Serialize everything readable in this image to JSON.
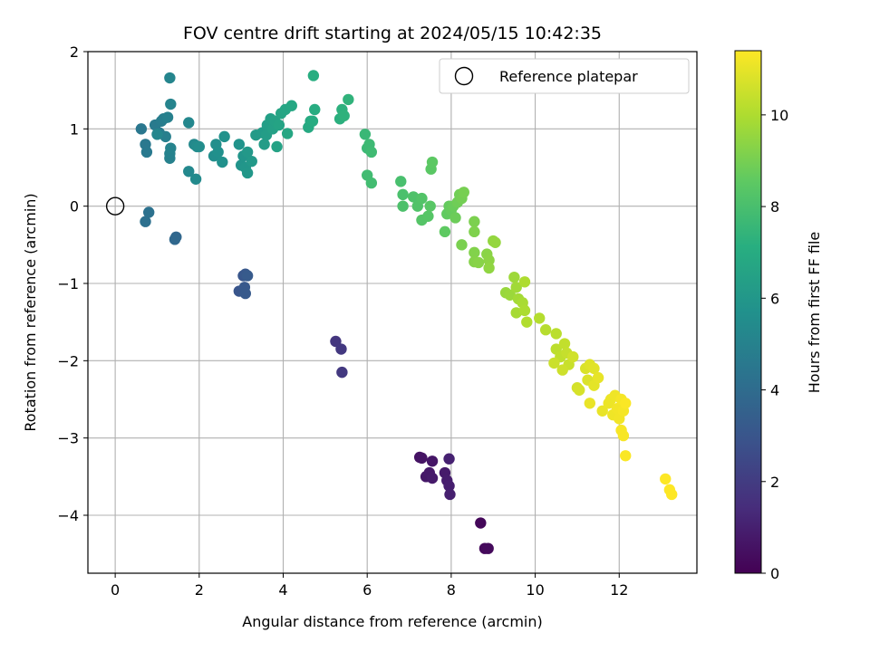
{
  "chart_data": {
    "type": "scatter",
    "title": "FOV centre drift starting at 2024/05/15 10:42:35",
    "xlabel": "Angular distance from reference (arcmin)",
    "ylabel": "Rotation from reference (arcmin)",
    "xlim": [
      -0.65,
      13.85
    ],
    "ylim": [
      -4.75,
      2.0
    ],
    "xticks": [
      0,
      2,
      4,
      6,
      8,
      10,
      12
    ],
    "yticks": [
      -4,
      -3,
      -2,
      -1,
      0,
      1,
      2
    ],
    "grid": true,
    "legend": {
      "position": "top-right",
      "entries": [
        "Reference platepar"
      ]
    },
    "colorbar": {
      "label": "Hours from first FF file",
      "min": 0,
      "max": 11.4,
      "ticks": [
        0,
        2,
        4,
        6,
        8,
        10
      ],
      "colormap": "viridis"
    },
    "reference_point": {
      "x": 0,
      "y": 0
    },
    "points": [
      {
        "x": 8.7,
        "y": -4.1,
        "t": 0.2
      },
      {
        "x": 8.8,
        "y": -4.43,
        "t": 0.25
      },
      {
        "x": 8.88,
        "y": -4.43,
        "t": 0.3
      },
      {
        "x": 7.25,
        "y": -3.25,
        "t": 0.55
      },
      {
        "x": 7.3,
        "y": -3.26,
        "t": 0.6
      },
      {
        "x": 7.55,
        "y": -3.3,
        "t": 0.65
      },
      {
        "x": 7.4,
        "y": -3.5,
        "t": 0.7
      },
      {
        "x": 7.48,
        "y": -3.45,
        "t": 0.75
      },
      {
        "x": 7.55,
        "y": -3.52,
        "t": 0.8
      },
      {
        "x": 7.85,
        "y": -3.45,
        "t": 0.85
      },
      {
        "x": 7.9,
        "y": -3.55,
        "t": 0.9
      },
      {
        "x": 7.95,
        "y": -3.62,
        "t": 0.95
      },
      {
        "x": 7.97,
        "y": -3.73,
        "t": 1.0
      },
      {
        "x": 7.95,
        "y": -3.27,
        "t": 1.05
      },
      {
        "x": 5.25,
        "y": -1.75,
        "t": 1.8
      },
      {
        "x": 5.38,
        "y": -1.85,
        "t": 1.85
      },
      {
        "x": 5.4,
        "y": -2.15,
        "t": 1.9
      },
      {
        "x": 2.95,
        "y": -1.1,
        "t": 3.0
      },
      {
        "x": 3.05,
        "y": -0.9,
        "t": 3.05
      },
      {
        "x": 3.1,
        "y": -0.88,
        "t": 3.1
      },
      {
        "x": 3.08,
        "y": -1.05,
        "t": 3.15
      },
      {
        "x": 3.1,
        "y": -1.13,
        "t": 3.2
      },
      {
        "x": 3.15,
        "y": -0.9,
        "t": 3.25
      },
      {
        "x": 1.45,
        "y": -0.4,
        "t": 3.8
      },
      {
        "x": 1.42,
        "y": -0.43,
        "t": 3.85
      },
      {
        "x": 0.72,
        "y": -0.2,
        "t": 4.2
      },
      {
        "x": 0.8,
        "y": -0.08,
        "t": 4.25
      },
      {
        "x": 0.62,
        "y": 1.0,
        "t": 4.5
      },
      {
        "x": 0.72,
        "y": 0.8,
        "t": 4.55
      },
      {
        "x": 0.75,
        "y": 0.7,
        "t": 4.6
      },
      {
        "x": 0.95,
        "y": 1.05,
        "t": 4.65
      },
      {
        "x": 1.05,
        "y": 0.95,
        "t": 4.7
      },
      {
        "x": 1.1,
        "y": 1.1,
        "t": 4.75
      },
      {
        "x": 1.15,
        "y": 1.13,
        "t": 4.8
      },
      {
        "x": 1.2,
        "y": 0.9,
        "t": 4.85
      },
      {
        "x": 1.25,
        "y": 1.15,
        "t": 4.9
      },
      {
        "x": 1.3,
        "y": 0.62,
        "t": 4.95
      },
      {
        "x": 1.3,
        "y": 0.68,
        "t": 5.0
      },
      {
        "x": 1.32,
        "y": 0.75,
        "t": 5.05
      },
      {
        "x": 1.32,
        "y": 1.32,
        "t": 5.1
      },
      {
        "x": 1.3,
        "y": 1.66,
        "t": 5.15
      },
      {
        "x": 1.0,
        "y": 0.93,
        "t": 5.2
      },
      {
        "x": 1.75,
        "y": 1.08,
        "t": 5.25
      },
      {
        "x": 1.75,
        "y": 0.45,
        "t": 5.3
      },
      {
        "x": 1.88,
        "y": 0.8,
        "t": 5.35
      },
      {
        "x": 1.92,
        "y": 0.35,
        "t": 5.4
      },
      {
        "x": 1.95,
        "y": 0.77,
        "t": 5.45
      },
      {
        "x": 2.0,
        "y": 0.77,
        "t": 5.5
      },
      {
        "x": 2.35,
        "y": 0.65,
        "t": 5.55
      },
      {
        "x": 2.4,
        "y": 0.8,
        "t": 5.6
      },
      {
        "x": 2.45,
        "y": 0.7,
        "t": 5.65
      },
      {
        "x": 2.55,
        "y": 0.57,
        "t": 5.7
      },
      {
        "x": 2.6,
        "y": 0.9,
        "t": 5.75
      },
      {
        "x": 2.95,
        "y": 0.8,
        "t": 5.8
      },
      {
        "x": 3.0,
        "y": 0.53,
        "t": 5.85
      },
      {
        "x": 3.05,
        "y": 0.65,
        "t": 5.9
      },
      {
        "x": 3.1,
        "y": 0.5,
        "t": 5.95
      },
      {
        "x": 3.15,
        "y": 0.43,
        "t": 6.0
      },
      {
        "x": 3.15,
        "y": 0.7,
        "t": 6.05
      },
      {
        "x": 3.25,
        "y": 0.58,
        "t": 6.1
      },
      {
        "x": 3.35,
        "y": 0.92,
        "t": 6.15
      },
      {
        "x": 3.5,
        "y": 0.95,
        "t": 6.2
      },
      {
        "x": 3.55,
        "y": 0.8,
        "t": 6.25
      },
      {
        "x": 3.6,
        "y": 0.92,
        "t": 6.3
      },
      {
        "x": 3.62,
        "y": 1.05,
        "t": 6.35
      },
      {
        "x": 3.7,
        "y": 1.13,
        "t": 6.4
      },
      {
        "x": 3.75,
        "y": 1.0,
        "t": 6.45
      },
      {
        "x": 3.8,
        "y": 1.1,
        "t": 6.5
      },
      {
        "x": 3.85,
        "y": 0.77,
        "t": 6.55
      },
      {
        "x": 3.9,
        "y": 1.05,
        "t": 6.6
      },
      {
        "x": 3.95,
        "y": 1.2,
        "t": 6.65
      },
      {
        "x": 4.05,
        "y": 1.25,
        "t": 6.7
      },
      {
        "x": 4.1,
        "y": 0.94,
        "t": 6.75
      },
      {
        "x": 4.2,
        "y": 1.3,
        "t": 6.8
      },
      {
        "x": 4.6,
        "y": 1.02,
        "t": 6.9
      },
      {
        "x": 4.65,
        "y": 1.1,
        "t": 6.95
      },
      {
        "x": 4.7,
        "y": 1.1,
        "t": 7.0
      },
      {
        "x": 4.75,
        "y": 1.25,
        "t": 7.05
      },
      {
        "x": 4.72,
        "y": 1.69,
        "t": 7.1
      },
      {
        "x": 5.35,
        "y": 1.13,
        "t": 7.2
      },
      {
        "x": 5.4,
        "y": 1.25,
        "t": 7.25
      },
      {
        "x": 5.45,
        "y": 1.17,
        "t": 7.3
      },
      {
        "x": 5.55,
        "y": 1.38,
        "t": 7.35
      },
      {
        "x": 5.95,
        "y": 0.93,
        "t": 7.6
      },
      {
        "x": 6.0,
        "y": 0.75,
        "t": 7.65
      },
      {
        "x": 6.05,
        "y": 0.8,
        "t": 7.7
      },
      {
        "x": 6.1,
        "y": 0.7,
        "t": 7.75
      },
      {
        "x": 6.0,
        "y": 0.4,
        "t": 7.8
      },
      {
        "x": 6.1,
        "y": 0.3,
        "t": 7.85
      },
      {
        "x": 6.8,
        "y": 0.32,
        "t": 8.0
      },
      {
        "x": 6.85,
        "y": 0.15,
        "t": 8.05
      },
      {
        "x": 6.85,
        "y": 0.0,
        "t": 8.1
      },
      {
        "x": 7.1,
        "y": 0.12,
        "t": 8.15
      },
      {
        "x": 7.2,
        "y": 0.0,
        "t": 8.2
      },
      {
        "x": 7.3,
        "y": 0.1,
        "t": 8.25
      },
      {
        "x": 7.3,
        "y": -0.18,
        "t": 8.3
      },
      {
        "x": 7.45,
        "y": -0.13,
        "t": 8.35
      },
      {
        "x": 7.5,
        "y": 0.0,
        "t": 8.4
      },
      {
        "x": 7.52,
        "y": 0.48,
        "t": 8.45
      },
      {
        "x": 7.55,
        "y": 0.57,
        "t": 8.5
      },
      {
        "x": 7.85,
        "y": -0.33,
        "t": 8.55
      },
      {
        "x": 7.9,
        "y": -0.1,
        "t": 8.6
      },
      {
        "x": 7.95,
        "y": 0.0,
        "t": 8.65
      },
      {
        "x": 8.0,
        "y": -0.05,
        "t": 8.7
      },
      {
        "x": 8.05,
        "y": 0.0,
        "t": 8.75
      },
      {
        "x": 8.1,
        "y": -0.15,
        "t": 8.8
      },
      {
        "x": 8.15,
        "y": 0.05,
        "t": 8.85
      },
      {
        "x": 8.2,
        "y": 0.15,
        "t": 8.9
      },
      {
        "x": 8.25,
        "y": 0.1,
        "t": 8.95
      },
      {
        "x": 8.3,
        "y": 0.18,
        "t": 9.0
      },
      {
        "x": 8.25,
        "y": -0.5,
        "t": 9.05
      },
      {
        "x": 8.55,
        "y": -0.2,
        "t": 9.1
      },
      {
        "x": 8.55,
        "y": -0.33,
        "t": 9.15
      },
      {
        "x": 8.55,
        "y": -0.6,
        "t": 9.2
      },
      {
        "x": 8.55,
        "y": -0.72,
        "t": 9.25
      },
      {
        "x": 8.65,
        "y": -0.73,
        "t": 9.3
      },
      {
        "x": 8.85,
        "y": -0.62,
        "t": 9.35
      },
      {
        "x": 8.9,
        "y": -0.7,
        "t": 9.4
      },
      {
        "x": 8.9,
        "y": -0.8,
        "t": 9.45
      },
      {
        "x": 9.0,
        "y": -0.45,
        "t": 9.5
      },
      {
        "x": 9.05,
        "y": -0.47,
        "t": 9.55
      },
      {
        "x": 9.3,
        "y": -1.12,
        "t": 9.6
      },
      {
        "x": 9.4,
        "y": -1.15,
        "t": 9.65
      },
      {
        "x": 9.5,
        "y": -0.92,
        "t": 9.7
      },
      {
        "x": 9.55,
        "y": -1.05,
        "t": 9.75
      },
      {
        "x": 9.6,
        "y": -1.2,
        "t": 9.8
      },
      {
        "x": 9.55,
        "y": -1.38,
        "t": 9.85
      },
      {
        "x": 9.7,
        "y": -1.25,
        "t": 9.9
      },
      {
        "x": 9.75,
        "y": -1.35,
        "t": 9.95
      },
      {
        "x": 9.75,
        "y": -0.98,
        "t": 10.0
      },
      {
        "x": 9.8,
        "y": -1.5,
        "t": 10.05
      },
      {
        "x": 10.1,
        "y": -1.45,
        "t": 10.1
      },
      {
        "x": 10.25,
        "y": -1.6,
        "t": 10.15
      },
      {
        "x": 10.5,
        "y": -1.65,
        "t": 10.2
      },
      {
        "x": 10.5,
        "y": -1.85,
        "t": 10.25
      },
      {
        "x": 10.6,
        "y": -1.95,
        "t": 10.3
      },
      {
        "x": 10.7,
        "y": -1.78,
        "t": 10.35
      },
      {
        "x": 10.75,
        "y": -1.9,
        "t": 10.4
      },
      {
        "x": 10.8,
        "y": -2.05,
        "t": 10.45
      },
      {
        "x": 10.45,
        "y": -2.03,
        "t": 10.5
      },
      {
        "x": 10.65,
        "y": -2.12,
        "t": 10.55
      },
      {
        "x": 10.9,
        "y": -1.95,
        "t": 10.6
      },
      {
        "x": 11.0,
        "y": -2.35,
        "t": 10.65
      },
      {
        "x": 11.05,
        "y": -2.38,
        "t": 10.7
      },
      {
        "x": 11.2,
        "y": -2.1,
        "t": 10.75
      },
      {
        "x": 11.25,
        "y": -2.25,
        "t": 10.8
      },
      {
        "x": 11.3,
        "y": -2.05,
        "t": 10.85
      },
      {
        "x": 11.4,
        "y": -2.1,
        "t": 10.9
      },
      {
        "x": 11.4,
        "y": -2.32,
        "t": 10.95
      },
      {
        "x": 11.5,
        "y": -2.22,
        "t": 11.0
      },
      {
        "x": 11.3,
        "y": -2.55,
        "t": 11.05
      },
      {
        "x": 11.6,
        "y": -2.65,
        "t": 11.05
      },
      {
        "x": 11.75,
        "y": -2.55,
        "t": 11.1
      },
      {
        "x": 11.8,
        "y": -2.5,
        "t": 11.1
      },
      {
        "x": 11.85,
        "y": -2.7,
        "t": 11.15
      },
      {
        "x": 11.9,
        "y": -2.45,
        "t": 11.15
      },
      {
        "x": 11.95,
        "y": -2.62,
        "t": 11.2
      },
      {
        "x": 12.0,
        "y": -2.75,
        "t": 11.2
      },
      {
        "x": 12.05,
        "y": -2.5,
        "t": 11.25
      },
      {
        "x": 12.1,
        "y": -2.65,
        "t": 11.25
      },
      {
        "x": 12.05,
        "y": -2.9,
        "t": 11.3
      },
      {
        "x": 12.1,
        "y": -2.97,
        "t": 11.3
      },
      {
        "x": 12.15,
        "y": -2.55,
        "t": 11.35
      },
      {
        "x": 12.15,
        "y": -3.23,
        "t": 11.35
      },
      {
        "x": 13.1,
        "y": -3.53,
        "t": 11.4
      },
      {
        "x": 13.2,
        "y": -3.67,
        "t": 11.4
      },
      {
        "x": 13.25,
        "y": -3.73,
        "t": 11.4
      }
    ]
  }
}
